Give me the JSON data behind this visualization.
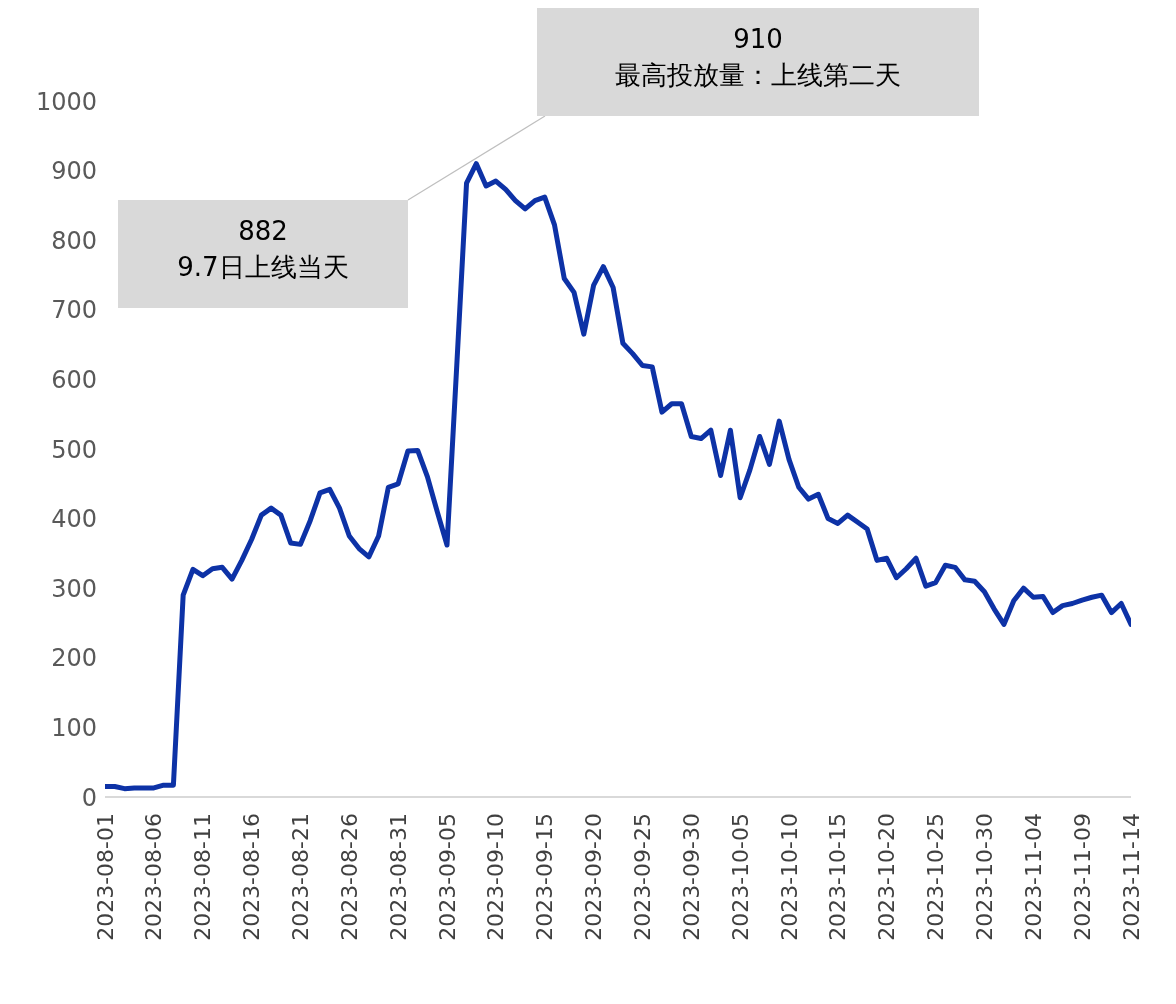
{
  "chart_data": {
    "type": "line",
    "x": [
      "2023-08-01",
      "2023-08-02",
      "2023-08-03",
      "2023-08-04",
      "2023-08-05",
      "2023-08-06",
      "2023-08-07",
      "2023-08-08",
      "2023-08-09",
      "2023-08-10",
      "2023-08-11",
      "2023-08-12",
      "2023-08-13",
      "2023-08-14",
      "2023-08-15",
      "2023-08-16",
      "2023-08-17",
      "2023-08-18",
      "2023-08-19",
      "2023-08-20",
      "2023-08-21",
      "2023-08-22",
      "2023-08-23",
      "2023-08-24",
      "2023-08-25",
      "2023-08-26",
      "2023-08-27",
      "2023-08-28",
      "2023-08-29",
      "2023-08-30",
      "2023-08-31",
      "2023-09-01",
      "2023-09-02",
      "2023-09-03",
      "2023-09-04",
      "2023-09-05",
      "2023-09-06",
      "2023-09-07",
      "2023-09-08",
      "2023-09-09",
      "2023-09-10",
      "2023-09-11",
      "2023-09-12",
      "2023-09-13",
      "2023-09-14",
      "2023-09-15",
      "2023-09-16",
      "2023-09-17",
      "2023-09-18",
      "2023-09-19",
      "2023-09-20",
      "2023-09-21",
      "2023-09-22",
      "2023-09-23",
      "2023-09-24",
      "2023-09-25",
      "2023-09-26",
      "2023-09-27",
      "2023-09-28",
      "2023-09-29",
      "2023-09-30",
      "2023-10-01",
      "2023-10-02",
      "2023-10-03",
      "2023-10-04",
      "2023-10-05",
      "2023-10-06",
      "2023-10-07",
      "2023-10-08",
      "2023-10-09",
      "2023-10-10",
      "2023-10-11",
      "2023-10-12",
      "2023-10-13",
      "2023-10-14",
      "2023-10-15",
      "2023-10-16",
      "2023-10-17",
      "2023-10-18",
      "2023-10-19",
      "2023-10-20",
      "2023-10-21",
      "2023-10-22",
      "2023-10-23",
      "2023-10-24",
      "2023-10-25",
      "2023-10-26",
      "2023-10-27",
      "2023-10-28",
      "2023-10-29",
      "2023-10-30",
      "2023-10-31",
      "2023-11-01",
      "2023-11-02",
      "2023-11-03",
      "2023-11-04",
      "2023-11-05",
      "2023-11-06",
      "2023-11-07",
      "2023-11-08",
      "2023-11-09",
      "2023-11-10",
      "2023-11-11",
      "2023-11-12",
      "2023-11-13",
      "2023-11-14"
    ],
    "series": [
      {
        "color": "#0d32a6",
        "values": [
          15,
          15,
          12,
          13,
          13,
          13,
          17,
          17,
          290,
          327,
          318,
          328,
          330,
          313,
          340,
          370,
          405,
          415,
          405,
          365,
          363,
          397,
          437,
          442,
          415,
          375,
          357,
          345,
          375,
          445,
          450,
          497,
          498,
          460,
          410,
          362,
          620,
          882,
          910,
          878,
          885,
          873,
          857,
          845,
          857,
          862,
          822,
          745,
          725,
          665,
          735,
          762,
          732,
          652,
          637,
          620,
          618,
          553,
          565,
          565,
          518,
          515,
          527,
          462,
          527,
          430,
          470,
          518,
          478,
          540,
          485,
          445,
          428,
          435,
          400,
          393,
          405,
          395,
          385,
          340,
          343,
          315,
          328,
          343,
          303,
          308,
          333,
          330,
          312,
          310,
          295,
          270,
          248,
          282,
          300,
          287,
          288,
          265,
          275,
          278,
          283,
          287,
          290,
          265,
          278,
          248
        ]
      }
    ],
    "xlim": [
      "2023-08-01",
      "2023-11-14"
    ],
    "xticks": [
      "2023-08-01",
      "2023-08-06",
      "2023-08-11",
      "2023-08-16",
      "2023-08-21",
      "2023-08-26",
      "2023-08-31",
      "2023-09-05",
      "2023-09-10",
      "2023-09-15",
      "2023-09-20",
      "2023-09-25",
      "2023-09-30",
      "2023-10-05",
      "2023-10-10",
      "2023-10-15",
      "2023-10-20",
      "2023-10-25",
      "2023-10-30",
      "2023-11-04",
      "2023-11-09",
      "2023-11-14"
    ],
    "ylim": [
      0,
      1000
    ],
    "yticks": [
      0,
      100,
      200,
      300,
      400,
      500,
      600,
      700,
      800,
      900,
      1000
    ],
    "grid": false,
    "marker": "none",
    "line_style": "solid",
    "annotations": [
      "882\n9.7日上线当天",
      "910\n最高投放量：上线第二天"
    ]
  }
}
